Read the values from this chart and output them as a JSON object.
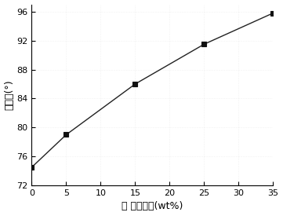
{
  "x": [
    0,
    5,
    15,
    25,
    35
  ],
  "y": [
    74.5,
    79.0,
    86.0,
    91.5,
    95.8
  ],
  "xlabel": "蕽 麻油含量(wt%)",
  "ylabel": "接触角(°)",
  "xlim": [
    0,
    35
  ],
  "ylim": [
    72,
    97
  ],
  "xticks": [
    0,
    5,
    10,
    15,
    20,
    25,
    30,
    35
  ],
  "yticks": [
    72,
    76,
    80,
    84,
    88,
    92,
    96
  ],
  "line_color": "#222222",
  "marker": "s",
  "marker_size": 4,
  "marker_color": "#111111",
  "background_color": "#ffffff",
  "plot_bg_color": "#ffffff",
  "grid": false
}
